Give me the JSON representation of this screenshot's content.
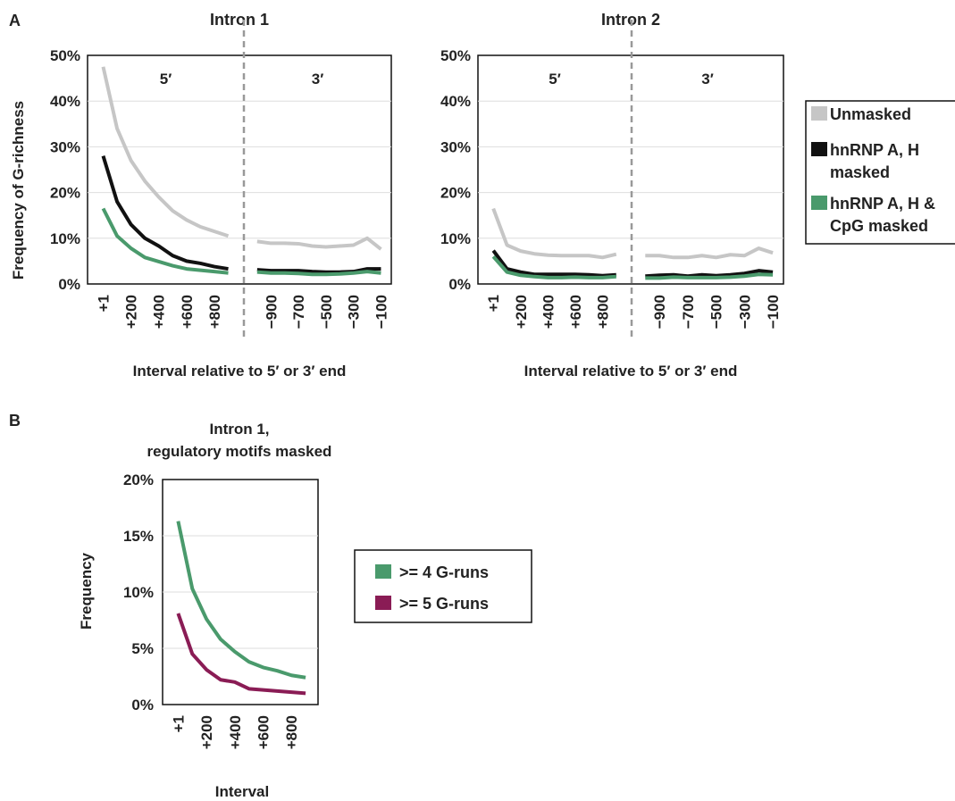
{
  "panel_labels": {
    "a": "A",
    "b": "B"
  },
  "legend_a": {
    "entries": [
      {
        "label_lines": [
          "Unmasked"
        ],
        "color": "#c6c6c6"
      },
      {
        "label_lines": [
          "hnRNP A, H",
          "masked"
        ],
        "color": "#111111"
      },
      {
        "label_lines": [
          "hnRNP A, H &",
          "CpG masked"
        ],
        "color": "#4a9a6c"
      }
    ]
  },
  "legend_b": {
    "entries": [
      {
        "label": ">= 4 G-runs",
        "color": "#4a9a6c"
      },
      {
        "label": ">= 5 G-runs",
        "color": "#8a1c55"
      }
    ]
  },
  "chart_data": [
    {
      "type": "line",
      "title": "Intron 1",
      "xlabel": "Interval relative to 5′ or 3′ end",
      "ylabel": "Frequency of G-richness",
      "ylim": [
        0,
        0.5
      ],
      "yticks": [
        "0%",
        "10%",
        "20%",
        "30%",
        "40%",
        "50%"
      ],
      "grid": true,
      "region_labels": [
        "5′",
        "3′"
      ],
      "x_5prime": [
        1,
        100,
        200,
        300,
        400,
        500,
        600,
        700,
        800,
        900
      ],
      "x_3prime": [
        -1000,
        -900,
        -800,
        -700,
        -600,
        -500,
        -400,
        -300,
        -200,
        -100
      ],
      "xtick_labels_5prime": [
        "+1",
        "+200",
        "+400",
        "+600",
        "+800"
      ],
      "xtick_labels_3prime": [
        "−900",
        "−700",
        "−500",
        "−300",
        "−100"
      ],
      "series": [
        {
          "name": "Unmasked",
          "color": "#c6c6c6",
          "values_5prime": [
            0.475,
            0.34,
            0.27,
            0.225,
            0.19,
            0.16,
            0.14,
            0.125,
            0.115,
            0.105
          ],
          "values_3prime": [
            0.093,
            0.089,
            0.089,
            0.088,
            0.083,
            0.081,
            0.083,
            0.085,
            0.1,
            0.076
          ]
        },
        {
          "name": "hnRNP A, H masked",
          "color": "#111111",
          "values_5prime": [
            0.28,
            0.18,
            0.13,
            0.1,
            0.083,
            0.062,
            0.05,
            0.045,
            0.038,
            0.033
          ],
          "values_3prime": [
            0.031,
            0.029,
            0.029,
            0.029,
            0.027,
            0.026,
            0.026,
            0.027,
            0.033,
            0.033
          ]
        },
        {
          "name": "hnRNP A, H & CpG masked",
          "color": "#4a9a6c",
          "values_5prime": [
            0.165,
            0.105,
            0.078,
            0.058,
            0.049,
            0.04,
            0.033,
            0.03,
            0.027,
            0.024
          ],
          "values_3prime": [
            0.026,
            0.024,
            0.024,
            0.023,
            0.021,
            0.021,
            0.022,
            0.024,
            0.027,
            0.024
          ]
        }
      ]
    },
    {
      "type": "line",
      "title": "Intron 2",
      "xlabel": "Interval relative to 5′ or 3′ end",
      "ylabel": "",
      "ylim": [
        0,
        0.5
      ],
      "yticks": [
        "0%",
        "10%",
        "20%",
        "30%",
        "40%",
        "50%"
      ],
      "grid": true,
      "region_labels": [
        "5′",
        "3′"
      ],
      "x_5prime": [
        1,
        100,
        200,
        300,
        400,
        500,
        600,
        700,
        800,
        900
      ],
      "x_3prime": [
        -1000,
        -900,
        -800,
        -700,
        -600,
        -500,
        -400,
        -300,
        -200,
        -100
      ],
      "xtick_labels_5prime": [
        "+1",
        "+200",
        "+400",
        "+600",
        "+800"
      ],
      "xtick_labels_3prime": [
        "−900",
        "−700",
        "−500",
        "−300",
        "−100"
      ],
      "series": [
        {
          "name": "Unmasked",
          "color": "#c6c6c6",
          "values_5prime": [
            0.165,
            0.085,
            0.072,
            0.066,
            0.063,
            0.062,
            0.062,
            0.062,
            0.058,
            0.065
          ],
          "values_3prime": [
            0.062,
            0.062,
            0.058,
            0.058,
            0.062,
            0.058,
            0.064,
            0.062,
            0.078,
            0.068
          ]
        },
        {
          "name": "hnRNP A, H masked",
          "color": "#111111",
          "values_5prime": [
            0.073,
            0.033,
            0.026,
            0.021,
            0.021,
            0.021,
            0.021,
            0.02,
            0.018,
            0.02
          ],
          "values_3prime": [
            0.017,
            0.019,
            0.02,
            0.017,
            0.02,
            0.018,
            0.02,
            0.023,
            0.029,
            0.026
          ]
        },
        {
          "name": "hnRNP A, H & CpG masked",
          "color": "#4a9a6c",
          "values_5prime": [
            0.06,
            0.026,
            0.019,
            0.016,
            0.014,
            0.014,
            0.015,
            0.014,
            0.014,
            0.016
          ],
          "values_3prime": [
            0.013,
            0.013,
            0.015,
            0.014,
            0.014,
            0.014,
            0.015,
            0.017,
            0.021,
            0.02
          ]
        }
      ]
    },
    {
      "type": "line",
      "title_lines": [
        "Intron 1,",
        "regulatory motifs masked"
      ],
      "xlabel": "Interval",
      "ylabel": "Frequency",
      "ylim": [
        0,
        0.2
      ],
      "yticks": [
        "0%",
        "5%",
        "10%",
        "15%",
        "20%"
      ],
      "grid": true,
      "x": [
        1,
        100,
        200,
        300,
        400,
        500,
        600,
        700,
        800,
        900
      ],
      "xtick_labels": [
        "+1",
        "+200",
        "+400",
        "+600",
        "+800"
      ],
      "series": [
        {
          "name": ">= 4 G-runs",
          "color": "#4a9a6c",
          "values": [
            0.163,
            0.103,
            0.076,
            0.058,
            0.047,
            0.038,
            0.033,
            0.03,
            0.026,
            0.024
          ]
        },
        {
          "name": ">= 5 G-runs",
          "color": "#8a1c55",
          "values": [
            0.081,
            0.045,
            0.031,
            0.022,
            0.02,
            0.014,
            0.013,
            0.012,
            0.011,
            0.01
          ]
        }
      ]
    }
  ]
}
